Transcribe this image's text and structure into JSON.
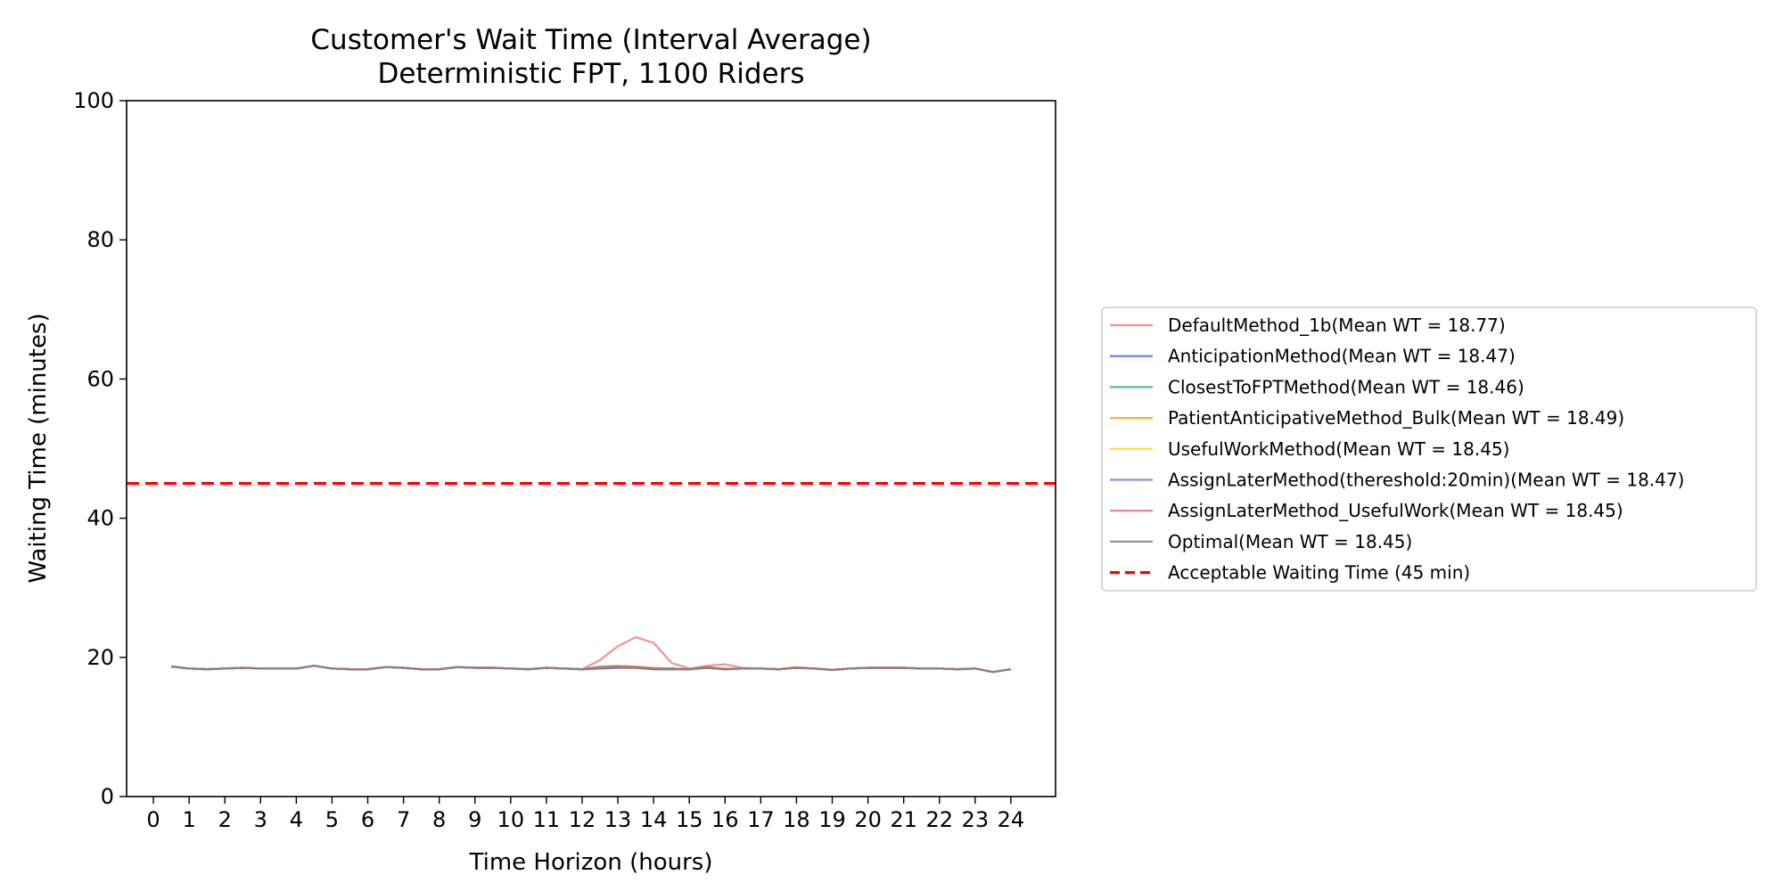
{
  "chart_data": {
    "type": "line",
    "title": "Customer's Wait Time (Interval Average)",
    "subtitle": "Deterministic FPT, 1100 Riders",
    "xlabel": "Time Horizon (hours)",
    "ylabel": "Waiting Time (minutes)",
    "xlim": [
      -0.75,
      25.25
    ],
    "ylim": [
      0,
      100
    ],
    "xticks": [
      0,
      1,
      2,
      3,
      4,
      5,
      6,
      7,
      8,
      9,
      10,
      11,
      12,
      13,
      14,
      15,
      16,
      17,
      18,
      19,
      20,
      21,
      22,
      23,
      24
    ],
    "yticks": [
      0,
      20,
      40,
      60,
      80,
      100
    ],
    "grid": false,
    "legend_position": "right, outside plot",
    "x": [
      0.5,
      1,
      1.5,
      2,
      2.5,
      3,
      3.5,
      4,
      4.5,
      5,
      5.5,
      6,
      6.5,
      7,
      7.5,
      8,
      8.5,
      9,
      9.5,
      10,
      10.5,
      11,
      11.5,
      12,
      12.5,
      13,
      13.5,
      14,
      14.5,
      15,
      15.5,
      16,
      16.5,
      17,
      17.5,
      18,
      18.5,
      19,
      19.5,
      20,
      20.5,
      21,
      21.5,
      22,
      22.5,
      23,
      23.5,
      24
    ],
    "series": [
      {
        "name": "DefaultMethod_1b(Mean WT = 18.77)",
        "color": "#f08080",
        "values": [
          18.7,
          18.4,
          18.3,
          18.4,
          18.5,
          18.4,
          18.4,
          18.4,
          18.8,
          18.4,
          18.3,
          18.3,
          18.6,
          18.5,
          18.3,
          18.3,
          18.6,
          18.5,
          18.5,
          18.4,
          18.3,
          18.5,
          18.4,
          18.3,
          19.6,
          21.6,
          22.9,
          22.1,
          19.2,
          18.4,
          18.8,
          19.0,
          18.5,
          18.4,
          18.3,
          18.5,
          18.4,
          18.2,
          18.4,
          18.5,
          18.5,
          18.5,
          18.4,
          18.4,
          18.3,
          18.4,
          17.9,
          18.3
        ]
      },
      {
        "name": "AnticipationMethod(Mean WT = 18.47)",
        "color": "#4169e1",
        "values": [
          18.7,
          18.4,
          18.3,
          18.4,
          18.5,
          18.4,
          18.4,
          18.4,
          18.8,
          18.4,
          18.3,
          18.3,
          18.6,
          18.5,
          18.3,
          18.3,
          18.6,
          18.5,
          18.5,
          18.4,
          18.3,
          18.5,
          18.4,
          18.3,
          18.6,
          18.6,
          18.6,
          18.4,
          18.4,
          18.3,
          18.6,
          18.3,
          18.4,
          18.4,
          18.3,
          18.5,
          18.4,
          18.2,
          18.4,
          18.5,
          18.5,
          18.5,
          18.4,
          18.4,
          18.3,
          18.4,
          17.9,
          18.3
        ]
      },
      {
        "name": "ClosestToFPTMethod(Mean WT = 18.46)",
        "color": "#3cb371",
        "values": [
          18.7,
          18.4,
          18.3,
          18.4,
          18.5,
          18.4,
          18.4,
          18.4,
          18.8,
          18.4,
          18.3,
          18.3,
          18.6,
          18.5,
          18.3,
          18.3,
          18.6,
          18.5,
          18.5,
          18.4,
          18.3,
          18.5,
          18.4,
          18.3,
          18.5,
          18.6,
          18.5,
          18.4,
          18.4,
          18.3,
          18.5,
          18.3,
          18.4,
          18.4,
          18.3,
          18.5,
          18.4,
          18.2,
          18.4,
          18.5,
          18.5,
          18.5,
          18.4,
          18.4,
          18.3,
          18.4,
          17.9,
          18.3
        ]
      },
      {
        "name": "PatientAnticipativeMethod_Bulk(Mean WT = 18.49)",
        "color": "#ffa500",
        "values": [
          18.7,
          18.4,
          18.3,
          18.4,
          18.5,
          18.4,
          18.4,
          18.4,
          18.8,
          18.4,
          18.3,
          18.3,
          18.6,
          18.5,
          18.3,
          18.3,
          18.6,
          18.5,
          18.5,
          18.4,
          18.3,
          18.5,
          18.4,
          18.3,
          18.7,
          18.8,
          18.7,
          18.5,
          18.4,
          18.3,
          18.6,
          18.4,
          18.4,
          18.4,
          18.3,
          18.6,
          18.4,
          18.2,
          18.4,
          18.5,
          18.5,
          18.5,
          18.4,
          18.4,
          18.3,
          18.4,
          17.9,
          18.3
        ]
      },
      {
        "name": "UsefulWorkMethod(Mean WT = 18.45)",
        "color": "#ffd700",
        "values": [
          18.7,
          18.4,
          18.3,
          18.4,
          18.5,
          18.4,
          18.4,
          18.4,
          18.8,
          18.4,
          18.3,
          18.3,
          18.6,
          18.5,
          18.3,
          18.3,
          18.6,
          18.5,
          18.5,
          18.4,
          18.3,
          18.5,
          18.4,
          18.3,
          18.4,
          18.5,
          18.5,
          18.3,
          18.3,
          18.3,
          18.5,
          18.3,
          18.4,
          18.4,
          18.3,
          18.5,
          18.4,
          18.2,
          18.4,
          18.5,
          18.5,
          18.5,
          18.4,
          18.4,
          18.3,
          18.4,
          17.9,
          18.3
        ]
      },
      {
        "name": "AssignLaterMethod(thereshold:20min)(Mean WT = 18.47)",
        "color": "#9370db",
        "values": [
          18.7,
          18.4,
          18.3,
          18.4,
          18.5,
          18.4,
          18.4,
          18.4,
          18.8,
          18.4,
          18.3,
          18.3,
          18.6,
          18.5,
          18.3,
          18.3,
          18.6,
          18.5,
          18.5,
          18.4,
          18.3,
          18.5,
          18.4,
          18.3,
          18.6,
          18.7,
          18.6,
          18.4,
          18.4,
          18.3,
          18.6,
          18.3,
          18.4,
          18.4,
          18.3,
          18.5,
          18.4,
          18.2,
          18.4,
          18.5,
          18.5,
          18.5,
          18.4,
          18.4,
          18.3,
          18.4,
          17.9,
          18.3
        ]
      },
      {
        "name": "AssignLaterMethod_UsefulWork(Mean WT = 18.45)",
        "color": "#f06292",
        "values": [
          18.7,
          18.4,
          18.3,
          18.4,
          18.5,
          18.4,
          18.4,
          18.4,
          18.8,
          18.4,
          18.3,
          18.3,
          18.6,
          18.5,
          18.3,
          18.3,
          18.6,
          18.5,
          18.5,
          18.4,
          18.3,
          18.5,
          18.4,
          18.3,
          18.4,
          18.5,
          18.5,
          18.3,
          18.3,
          18.3,
          18.5,
          18.3,
          18.4,
          18.4,
          18.3,
          18.5,
          18.4,
          18.2,
          18.4,
          18.5,
          18.5,
          18.5,
          18.4,
          18.4,
          18.3,
          18.4,
          17.9,
          18.3
        ]
      },
      {
        "name": "Optimal(Mean WT = 18.45)",
        "color": "#808080",
        "values": [
          18.7,
          18.4,
          18.3,
          18.4,
          18.5,
          18.4,
          18.4,
          18.4,
          18.8,
          18.4,
          18.3,
          18.3,
          18.6,
          18.5,
          18.3,
          18.3,
          18.6,
          18.5,
          18.5,
          18.4,
          18.3,
          18.5,
          18.4,
          18.3,
          18.4,
          18.5,
          18.5,
          18.3,
          18.3,
          18.3,
          18.5,
          18.3,
          18.4,
          18.4,
          18.3,
          18.5,
          18.4,
          18.2,
          18.4,
          18.5,
          18.5,
          18.5,
          18.4,
          18.4,
          18.3,
          18.4,
          17.9,
          18.3
        ]
      }
    ],
    "reference_line": {
      "name": "Acceptable Waiting Time (45 min)",
      "y": 45,
      "color": "#ff0000",
      "style": "dashed"
    }
  }
}
